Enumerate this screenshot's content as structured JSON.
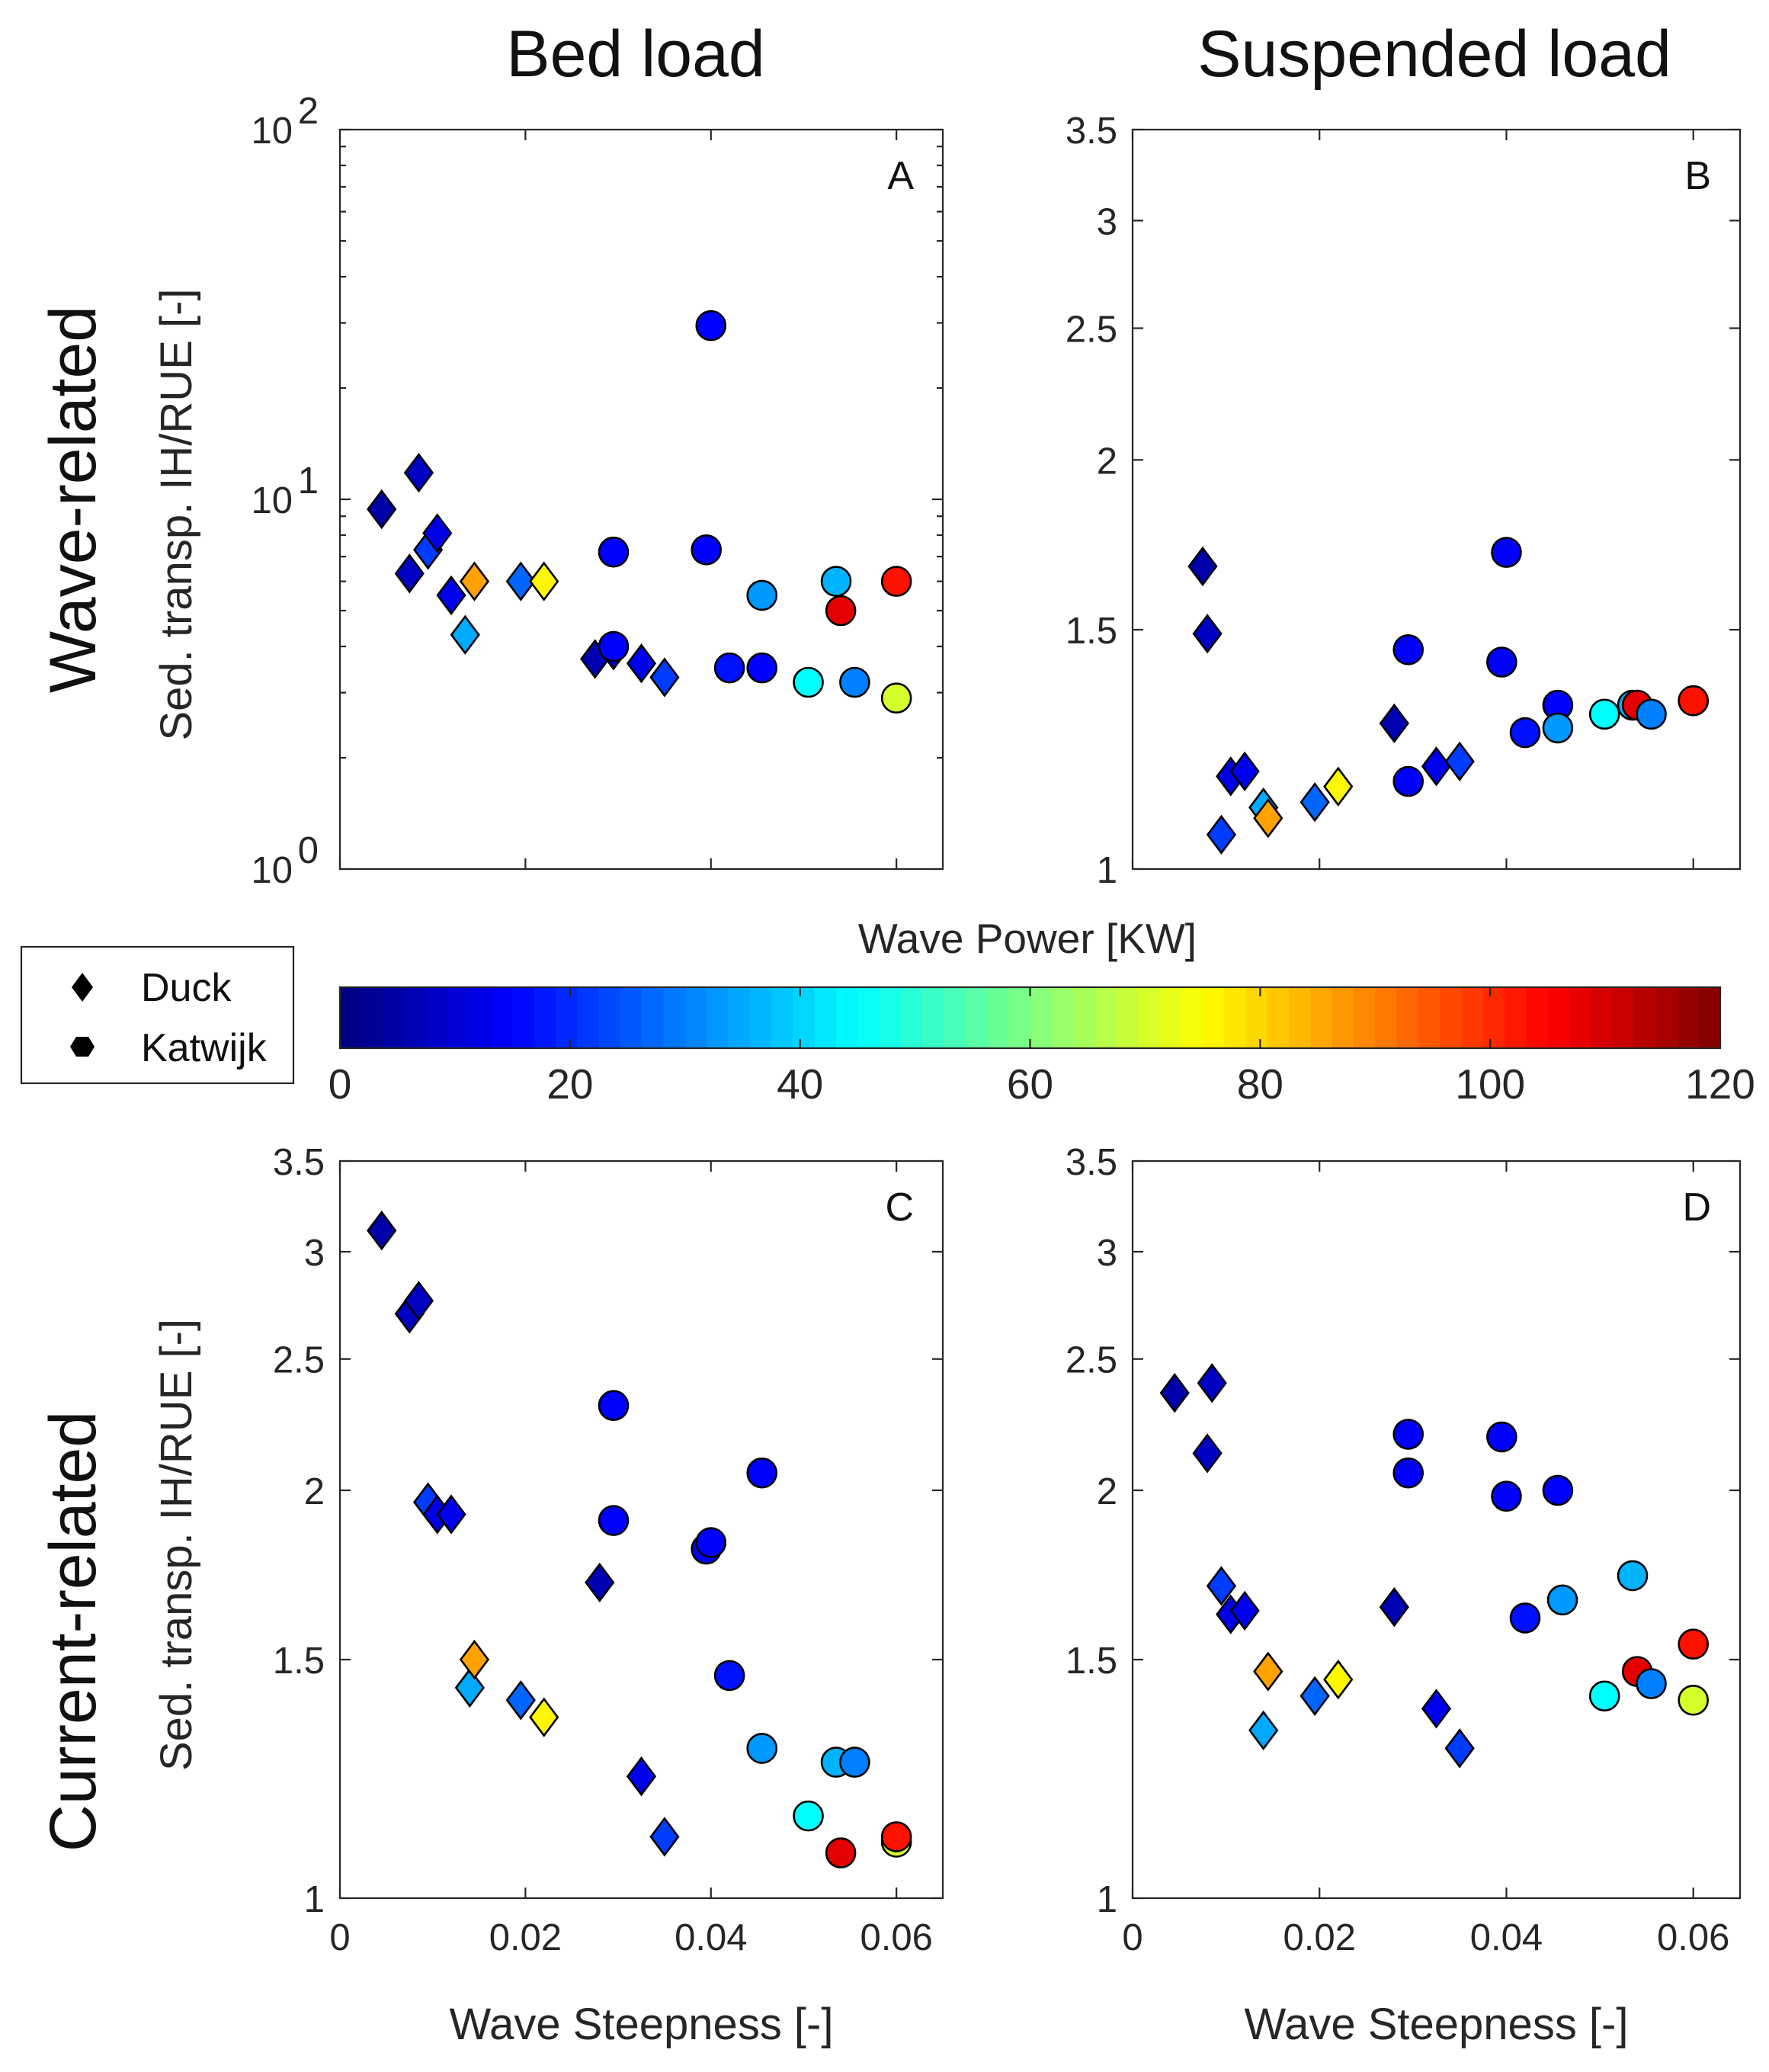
{
  "titles": {
    "left": "Bed load",
    "right": "Suspended load"
  },
  "row_labels": {
    "top": "Wave-related",
    "bottom": "Current-related"
  },
  "legend": {
    "duck": "Duck",
    "katwijk": "Katwijk"
  },
  "colorbar": {
    "label": "Wave Power [KW]",
    "min": 0,
    "max": 120,
    "ticks": [
      "0",
      "20",
      "40",
      "60",
      "80",
      "100",
      "120"
    ]
  },
  "chart_data": [
    {
      "panel": "A",
      "type": "scatter",
      "yscale": "log",
      "ylabel": "Sed. transp. IH/RUE [-]",
      "xlabel": "",
      "xlim": [
        0,
        0.065
      ],
      "ylim": [
        1,
        100
      ],
      "yticks": [
        1,
        10,
        100
      ],
      "ytick_labels": [
        {
          "b": "10",
          "e": "0"
        },
        {
          "b": "10",
          "e": "1"
        },
        {
          "b": "10",
          "e": "2"
        }
      ],
      "xticks": [
        0,
        0.02,
        0.04,
        0.06
      ],
      "xtick_labels": [],
      "series": [
        {
          "name": "Duck",
          "marker": "diamond",
          "points": [
            {
              "x": 0.0045,
              "y": 9.4,
              "p": 5
            },
            {
              "x": 0.0075,
              "y": 6.3,
              "p": 8
            },
            {
              "x": 0.0085,
              "y": 11.8,
              "p": 8
            },
            {
              "x": 0.0095,
              "y": 7.3,
              "p": 22
            },
            {
              "x": 0.0105,
              "y": 8.1,
              "p": 12
            },
            {
              "x": 0.012,
              "y": 5.5,
              "p": 13
            },
            {
              "x": 0.0135,
              "y": 4.3,
              "p": 35
            },
            {
              "x": 0.0145,
              "y": 6.0,
              "p": 86
            },
            {
              "x": 0.0195,
              "y": 6.0,
              "p": 27
            },
            {
              "x": 0.022,
              "y": 6.0,
              "p": 76
            },
            {
              "x": 0.0275,
              "y": 3.7,
              "p": 6
            },
            {
              "x": 0.0295,
              "y": 3.9,
              "p": 10
            },
            {
              "x": 0.0325,
              "y": 3.6,
              "p": 13
            },
            {
              "x": 0.035,
              "y": 3.3,
              "p": 22
            }
          ]
        },
        {
          "name": "Katwijk",
          "marker": "circle",
          "points": [
            {
              "x": 0.0295,
              "y": 7.2,
              "p": 15
            },
            {
              "x": 0.0295,
              "y": 4.0,
              "p": 15
            },
            {
              "x": 0.0395,
              "y": 7.3,
              "p": 15
            },
            {
              "x": 0.04,
              "y": 29.5,
              "p": 15
            },
            {
              "x": 0.042,
              "y": 3.5,
              "p": 17
            },
            {
              "x": 0.0455,
              "y": 3.5,
              "p": 15
            },
            {
              "x": 0.0455,
              "y": 5.5,
              "p": 33
            },
            {
              "x": 0.0505,
              "y": 3.2,
              "p": 45
            },
            {
              "x": 0.0535,
              "y": 6.0,
              "p": 36
            },
            {
              "x": 0.054,
              "y": 5.0,
              "p": 108
            },
            {
              "x": 0.0555,
              "y": 3.2,
              "p": 30
            },
            {
              "x": 0.06,
              "y": 2.9,
              "p": 70
            },
            {
              "x": 0.06,
              "y": 6.0,
              "p": 103
            }
          ]
        }
      ]
    },
    {
      "panel": "B",
      "type": "scatter",
      "yscale": "log",
      "ylabel": "",
      "xlabel": "",
      "xlim": [
        0,
        0.065
      ],
      "ylim": [
        1,
        3.5
      ],
      "yticks": [
        1,
        1.5,
        2,
        2.5,
        3,
        3.5
      ],
      "ytick_labels": [
        "1",
        "1.5",
        "2",
        "2.5",
        "3",
        "3.5"
      ],
      "xticks": [
        0,
        0.02,
        0.04,
        0.06
      ],
      "xtick_labels": [],
      "series": [
        {
          "name": "Duck",
          "marker": "diamond",
          "points": [
            {
              "x": 0.0075,
              "y": 1.67,
              "p": 5
            },
            {
              "x": 0.008,
              "y": 1.49,
              "p": 8
            },
            {
              "x": 0.0095,
              "y": 1.06,
              "p": 22
            },
            {
              "x": 0.0105,
              "y": 1.17,
              "p": 12
            },
            {
              "x": 0.012,
              "y": 1.18,
              "p": 13
            },
            {
              "x": 0.014,
              "y": 1.11,
              "p": 35
            },
            {
              "x": 0.0145,
              "y": 1.09,
              "p": 86
            },
            {
              "x": 0.0195,
              "y": 1.12,
              "p": 27
            },
            {
              "x": 0.022,
              "y": 1.15,
              "p": 76
            },
            {
              "x": 0.028,
              "y": 1.28,
              "p": 6
            },
            {
              "x": 0.0325,
              "y": 1.19,
              "p": 13
            },
            {
              "x": 0.035,
              "y": 1.2,
              "p": 22
            }
          ]
        },
        {
          "name": "Katwijk",
          "marker": "circle",
          "points": [
            {
              "x": 0.0295,
              "y": 1.45,
              "p": 15
            },
            {
              "x": 0.0295,
              "y": 1.16,
              "p": 15
            },
            {
              "x": 0.0395,
              "y": 1.42,
              "p": 15
            },
            {
              "x": 0.04,
              "y": 1.71,
              "p": 15
            },
            {
              "x": 0.042,
              "y": 1.26,
              "p": 17
            },
            {
              "x": 0.0455,
              "y": 1.32,
              "p": 15
            },
            {
              "x": 0.0455,
              "y": 1.27,
              "p": 33
            },
            {
              "x": 0.0505,
              "y": 1.3,
              "p": 45
            },
            {
              "x": 0.0535,
              "y": 1.32,
              "p": 36
            },
            {
              "x": 0.054,
              "y": 1.32,
              "p": 108
            },
            {
              "x": 0.0555,
              "y": 1.3,
              "p": 30
            },
            {
              "x": 0.06,
              "y": 1.33,
              "p": 70
            },
            {
              "x": 0.06,
              "y": 1.33,
              "p": 103
            }
          ]
        }
      ]
    },
    {
      "panel": "C",
      "type": "scatter",
      "yscale": "log",
      "ylabel": "Sed. transp. IH/RUE [-]",
      "xlabel": "Wave Steepness [-]",
      "xlim": [
        0,
        0.065
      ],
      "ylim": [
        1,
        3.5
      ],
      "yticks": [
        1,
        1.5,
        2,
        2.5,
        3,
        3.5
      ],
      "ytick_labels": [
        "1",
        "1.5",
        "2",
        "2.5",
        "3",
        "3.5"
      ],
      "xticks": [
        0,
        0.02,
        0.04,
        0.06
      ],
      "xtick_labels": [
        "0",
        "0.02",
        "0.04",
        "0.06"
      ],
      "series": [
        {
          "name": "Duck",
          "marker": "diamond",
          "points": [
            {
              "x": 0.0045,
              "y": 3.11,
              "p": 5
            },
            {
              "x": 0.0075,
              "y": 2.7,
              "p": 8
            },
            {
              "x": 0.0085,
              "y": 2.76,
              "p": 8
            },
            {
              "x": 0.0095,
              "y": 1.96,
              "p": 22
            },
            {
              "x": 0.0105,
              "y": 1.92,
              "p": 12
            },
            {
              "x": 0.012,
              "y": 1.92,
              "p": 13
            },
            {
              "x": 0.014,
              "y": 1.43,
              "p": 35
            },
            {
              "x": 0.0145,
              "y": 1.5,
              "p": 86
            },
            {
              "x": 0.0195,
              "y": 1.4,
              "p": 27
            },
            {
              "x": 0.022,
              "y": 1.36,
              "p": 76
            },
            {
              "x": 0.028,
              "y": 1.71,
              "p": 6
            },
            {
              "x": 0.0325,
              "y": 1.23,
              "p": 13
            },
            {
              "x": 0.035,
              "y": 1.11,
              "p": 22
            }
          ]
        },
        {
          "name": "Katwijk",
          "marker": "circle",
          "points": [
            {
              "x": 0.0295,
              "y": 2.31,
              "p": 15
            },
            {
              "x": 0.0295,
              "y": 1.9,
              "p": 15
            },
            {
              "x": 0.0395,
              "y": 1.81,
              "p": 15
            },
            {
              "x": 0.04,
              "y": 1.83,
              "p": 15
            },
            {
              "x": 0.042,
              "y": 1.46,
              "p": 17
            },
            {
              "x": 0.0455,
              "y": 2.06,
              "p": 15
            },
            {
              "x": 0.0455,
              "y": 1.29,
              "p": 33
            },
            {
              "x": 0.0505,
              "y": 1.15,
              "p": 45
            },
            {
              "x": 0.0535,
              "y": 1.26,
              "p": 36
            },
            {
              "x": 0.054,
              "y": 1.08,
              "p": 108
            },
            {
              "x": 0.0555,
              "y": 1.26,
              "p": 30
            },
            {
              "x": 0.06,
              "y": 1.1,
              "p": 70
            },
            {
              "x": 0.06,
              "y": 1.11,
              "p": 103
            }
          ]
        }
      ]
    },
    {
      "panel": "D",
      "type": "scatter",
      "yscale": "log",
      "ylabel": "",
      "xlabel": "Wave Steepness [-]",
      "xlim": [
        0,
        0.065
      ],
      "ylim": [
        1,
        3.5
      ],
      "yticks": [
        1,
        1.5,
        2,
        2.5,
        3,
        3.5
      ],
      "ytick_labels": [
        "1",
        "1.5",
        "2",
        "2.5",
        "3",
        "3.5"
      ],
      "xticks": [
        0,
        0.02,
        0.04,
        0.06
      ],
      "xtick_labels": [
        "0",
        "0.02",
        "0.04",
        "0.06"
      ],
      "series": [
        {
          "name": "Duck",
          "marker": "diamond",
          "points": [
            {
              "x": 0.0045,
              "y": 2.36,
              "p": 5
            },
            {
              "x": 0.008,
              "y": 2.13,
              "p": 8
            },
            {
              "x": 0.0085,
              "y": 2.4,
              "p": 8
            },
            {
              "x": 0.0095,
              "y": 1.7,
              "p": 22
            },
            {
              "x": 0.0105,
              "y": 1.62,
              "p": 12
            },
            {
              "x": 0.012,
              "y": 1.63,
              "p": 13
            },
            {
              "x": 0.014,
              "y": 1.33,
              "p": 35
            },
            {
              "x": 0.0145,
              "y": 1.47,
              "p": 86
            },
            {
              "x": 0.0195,
              "y": 1.41,
              "p": 27
            },
            {
              "x": 0.022,
              "y": 1.45,
              "p": 76
            },
            {
              "x": 0.028,
              "y": 1.64,
              "p": 6
            },
            {
              "x": 0.0325,
              "y": 1.38,
              "p": 13
            },
            {
              "x": 0.035,
              "y": 1.29,
              "p": 22
            }
          ]
        },
        {
          "name": "Katwijk",
          "marker": "circle",
          "points": [
            {
              "x": 0.0295,
              "y": 2.2,
              "p": 15
            },
            {
              "x": 0.0295,
              "y": 2.06,
              "p": 15
            },
            {
              "x": 0.0395,
              "y": 2.19,
              "p": 15
            },
            {
              "x": 0.04,
              "y": 1.98,
              "p": 15
            },
            {
              "x": 0.042,
              "y": 1.61,
              "p": 17
            },
            {
              "x": 0.0455,
              "y": 2.0,
              "p": 15
            },
            {
              "x": 0.046,
              "y": 1.66,
              "p": 33
            },
            {
              "x": 0.0505,
              "y": 1.41,
              "p": 45
            },
            {
              "x": 0.0535,
              "y": 1.73,
              "p": 36
            },
            {
              "x": 0.054,
              "y": 1.47,
              "p": 108
            },
            {
              "x": 0.0555,
              "y": 1.44,
              "p": 30
            },
            {
              "x": 0.06,
              "y": 1.4,
              "p": 70
            },
            {
              "x": 0.06,
              "y": 1.54,
              "p": 103
            }
          ]
        }
      ]
    }
  ]
}
